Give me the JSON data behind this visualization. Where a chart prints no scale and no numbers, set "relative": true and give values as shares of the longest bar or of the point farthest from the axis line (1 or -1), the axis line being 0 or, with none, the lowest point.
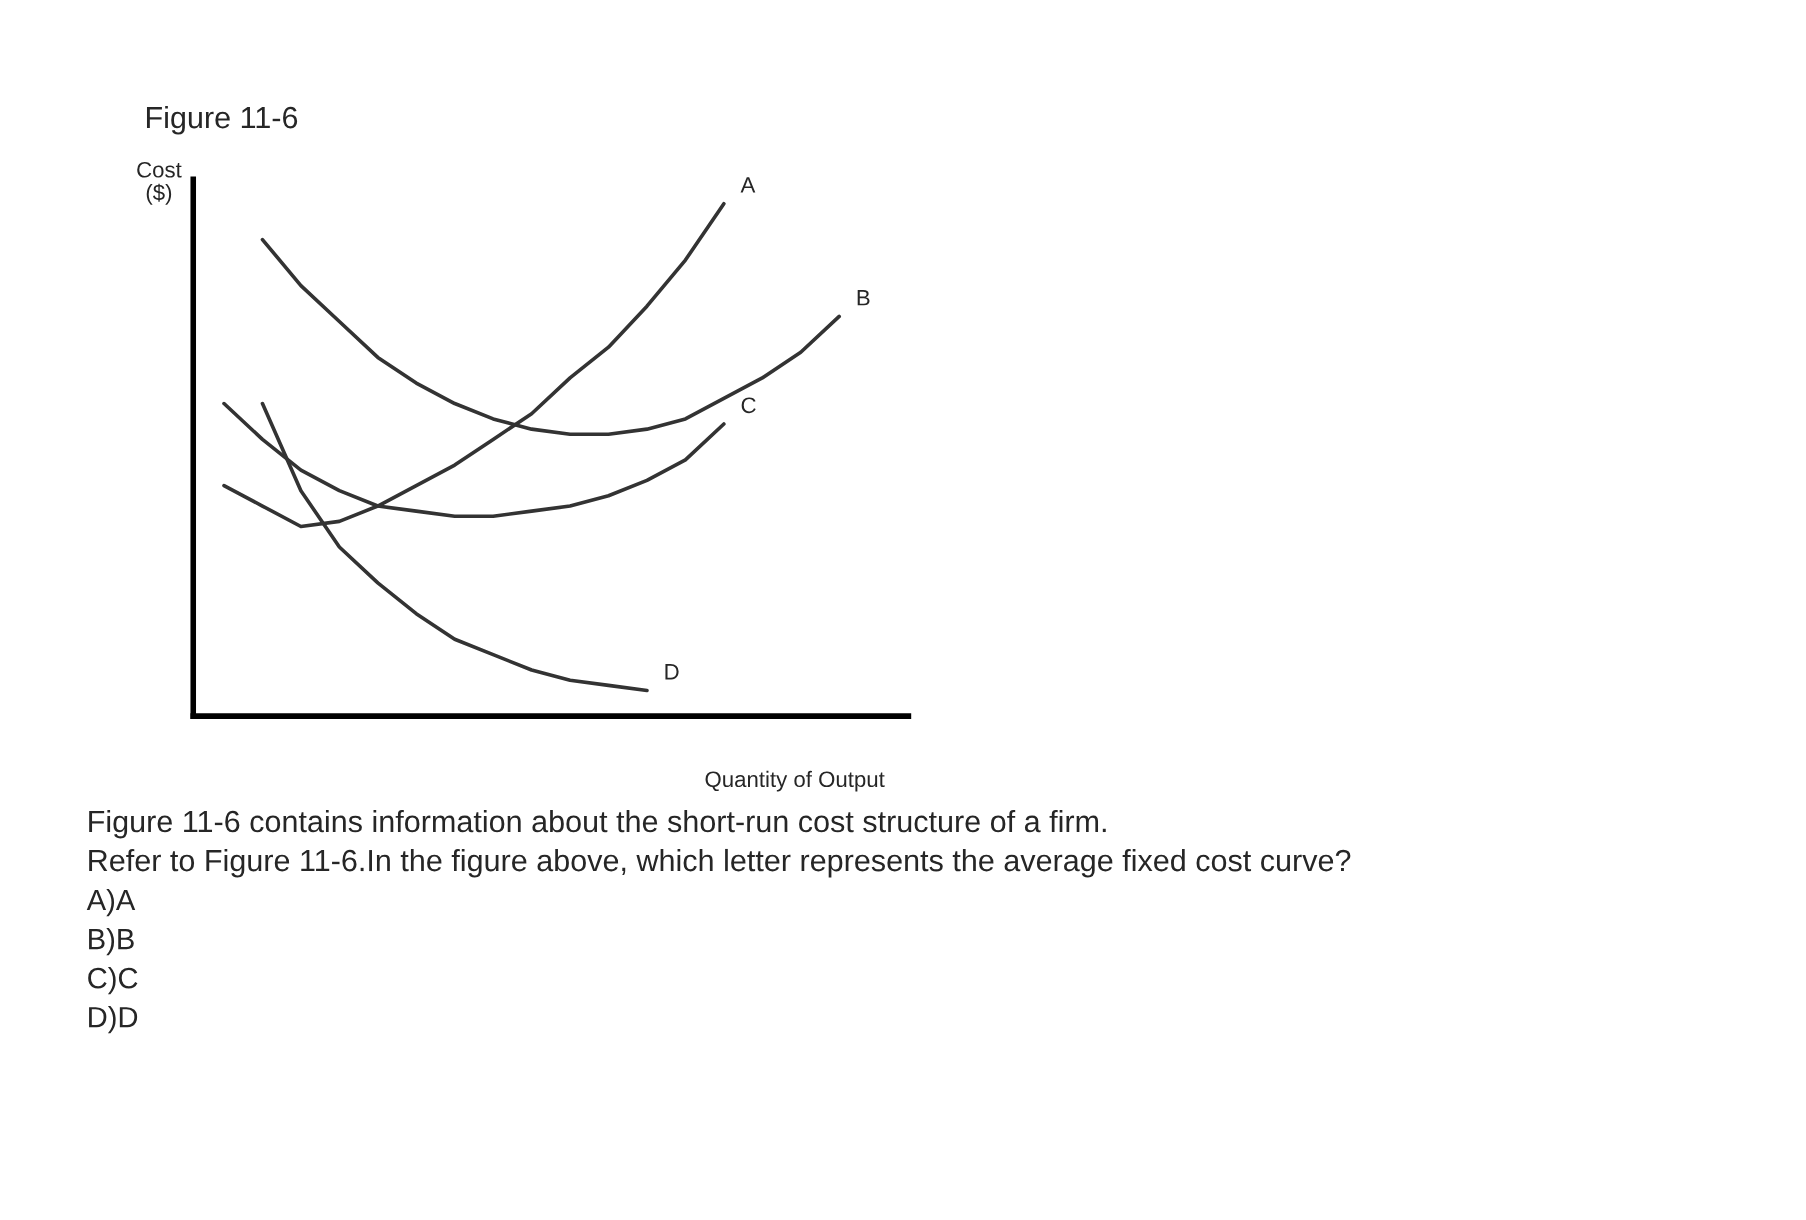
{
  "chart_data": {
    "type": "line",
    "relative": true,
    "title": "Figure 11-6",
    "ylabel": "Cost\n($)",
    "xlabel": "Quantity of Output",
    "legend": false,
    "grid": false,
    "marker": "none",
    "line_style": "solid",
    "categories": [
      null,
      null,
      null,
      null,
      null,
      null,
      null,
      null,
      null,
      null,
      null,
      null,
      null,
      null,
      null,
      null,
      null,
      null
    ],
    "series": [
      {
        "name": "A",
        "color": "#333333",
        "values": [
          0.45,
          0.41,
          0.37,
          0.38,
          0.41,
          0.45,
          0.49,
          0.54,
          0.59,
          0.66,
          0.72,
          0.8,
          0.89,
          1.0,
          null,
          null,
          null,
          null
        ]
      },
      {
        "name": "B",
        "color": "#333333",
        "values": [
          null,
          0.93,
          0.84,
          0.77,
          0.7,
          0.65,
          0.61,
          0.58,
          0.56,
          0.55,
          0.55,
          0.56,
          0.58,
          0.62,
          0.66,
          0.71,
          0.78,
          null
        ]
      },
      {
        "name": "C",
        "color": "#333333",
        "values": [
          0.61,
          0.54,
          0.48,
          0.44,
          0.41,
          0.4,
          0.39,
          0.39,
          0.4,
          0.41,
          0.43,
          0.46,
          0.5,
          0.57,
          null,
          null,
          null,
          null
        ]
      },
      {
        "name": "D",
        "color": "#333333",
        "values": [
          null,
          0.61,
          0.44,
          0.33,
          0.26,
          0.2,
          0.15,
          0.12,
          0.09,
          0.07,
          0.06,
          0.05,
          null,
          null,
          null,
          null,
          null,
          null
        ]
      }
    ],
    "annotations": [
      "Figure 11-6 contains information about the short-run cost structure of a firm.",
      "Refer to Figure 11-6.In the figure above, which letter represents the average fixed cost curve?",
      "A)A",
      "B)B",
      "C)C",
      "D)D"
    ]
  }
}
